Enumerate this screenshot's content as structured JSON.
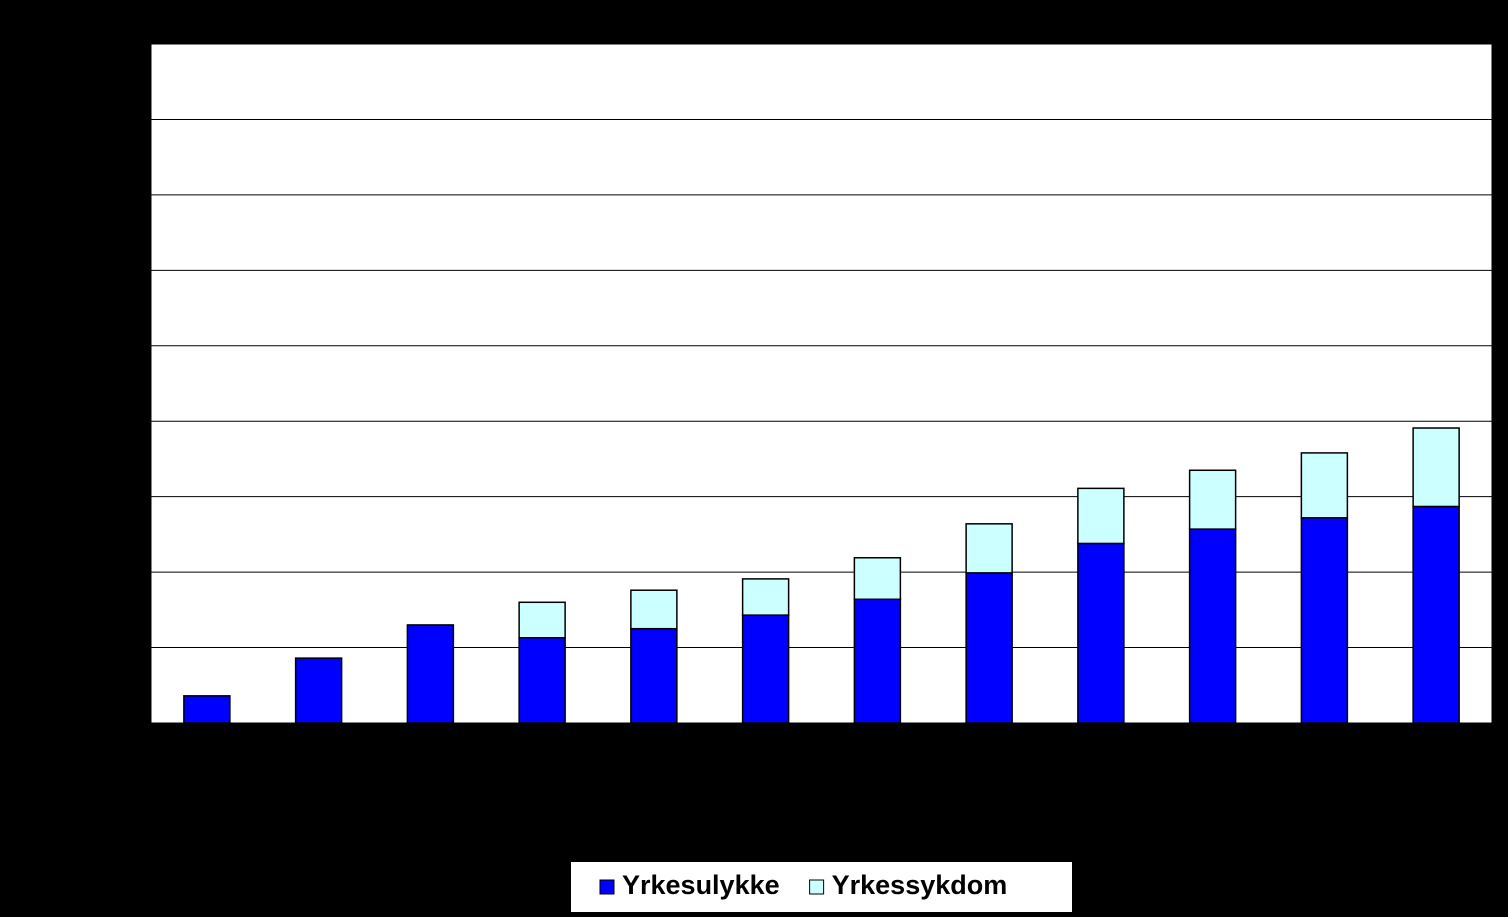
{
  "chart_data": {
    "type": "bar",
    "stacked": true,
    "categories": [
      null,
      null,
      null,
      null,
      null,
      null,
      null,
      null,
      null,
      null,
      null,
      null
    ],
    "series": [
      {
        "name": "Yrkesulykke",
        "color": "#0000ff",
        "values": [
          0.36,
          0.86,
          1.3,
          1.13,
          1.25,
          1.43,
          1.64,
          1.99,
          2.38,
          2.57,
          2.72,
          2.87
        ]
      },
      {
        "name": "Yrkessykdom",
        "color": "#ccffff",
        "values": [
          null,
          null,
          null,
          0.47,
          0.51,
          0.48,
          0.55,
          0.65,
          0.73,
          0.78,
          0.86,
          1.04
        ]
      }
    ],
    "ylim": [
      0,
      9
    ],
    "yticks": [
      0,
      1,
      2,
      3,
      4,
      5,
      6,
      7,
      8,
      9
    ],
    "grid": true
  }
}
